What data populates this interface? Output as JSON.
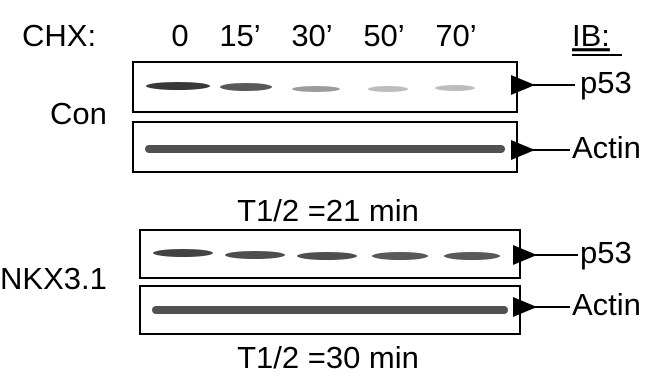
{
  "header": {
    "label": "CHX:",
    "times": [
      "0",
      "15’",
      "30’",
      "50’",
      "70’"
    ],
    "ib": "IB:"
  },
  "panels": [
    {
      "name": "Con",
      "blots": [
        "p53",
        "Actin"
      ],
      "half_life": "T1/2 =21 min"
    },
    {
      "name": "NKX3.1",
      "blots": [
        "p53",
        "Actin"
      ],
      "half_life": "T1/2 =30 min"
    }
  ]
}
